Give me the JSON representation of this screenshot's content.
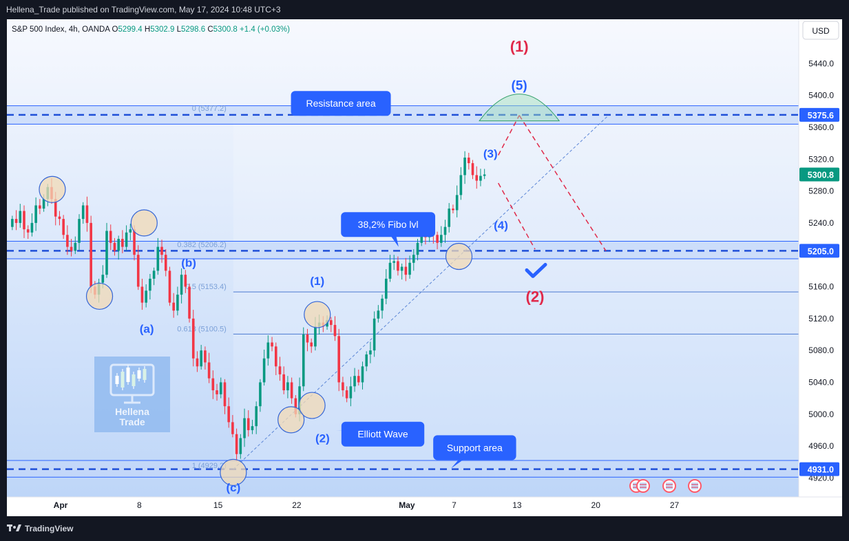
{
  "header": {
    "published_line": "Hellena_Trade published on TradingView.com, May 17, 2024 10:48 UTC+3"
  },
  "legend": {
    "symbol": "S&P 500 Index, 4h, OANDA",
    "o_label": "O",
    "o": "5299.4",
    "h_label": "H",
    "h": "5302.9",
    "l_label": "L",
    "l": "5298.6",
    "c_label": "C",
    "c": "5300.8",
    "change": "+1.4 (+0.03%)"
  },
  "currency_button": "USD",
  "footer": {
    "brand": "TradingView"
  },
  "watermark": {
    "line1": "Hellena",
    "line2": "Trade"
  },
  "colors": {
    "up": "#089981",
    "down": "#f23645",
    "band": "#2962ff",
    "wave_blue": "#2962ff",
    "wave_red": "#e0294a",
    "callout": "#2962ff",
    "fib": "#7ba0d8"
  },
  "chart_data": {
    "type": "candlestick",
    "ylim": [
      4910,
      5480
    ],
    "y_ticks": [
      "5440.0",
      "5400.0",
      "5360.0",
      "5320.0",
      "5280.0",
      "5240.0",
      "5200.0",
      "5160.0",
      "5120.0",
      "5080.0",
      "5040.0",
      "5000.0",
      "4960.0",
      "4920.0"
    ],
    "x_ticks": [
      {
        "label": "Apr",
        "t": 0,
        "bold": true
      },
      {
        "label": "8",
        "t": 30
      },
      {
        "label": "15",
        "t": 60
      },
      {
        "label": "22",
        "t": 90
      },
      {
        "label": "May",
        "t": 132,
        "bold": true
      },
      {
        "label": "7",
        "t": 150
      },
      {
        "label": "13",
        "t": 174
      },
      {
        "label": "20",
        "t": 204
      },
      {
        "label": "27",
        "t": 234
      }
    ],
    "price_labels": [
      {
        "text": "5375.6",
        "y": 5375.6,
        "bg": "#2962ff"
      },
      {
        "text": "5300.8",
        "y": 5300.8,
        "bg": "#089981"
      },
      {
        "text": "5205.0",
        "y": 5205.0,
        "bg": "#2962ff"
      },
      {
        "text": "4931.0",
        "y": 4931.0,
        "bg": "#2962ff"
      }
    ],
    "bands": [
      {
        "name": "resistance",
        "low": 5364,
        "high": 5387,
        "line": 5375.6
      },
      {
        "name": "pivot",
        "low": 5195,
        "high": 5217,
        "line": 5205
      },
      {
        "name": "support",
        "low": 4921,
        "high": 4942,
        "line": 4931
      }
    ],
    "fib_levels": [
      {
        "label": "0 (5377.2)",
        "y": 5377.2
      },
      {
        "label": "0.382 (5206.2)",
        "y": 5206.2
      },
      {
        "label": "0.5 (5153.4)",
        "y": 5153.4
      },
      {
        "label": "0.618 (5100.5)",
        "y": 5100.5
      },
      {
        "label": "1 (4929.2)",
        "y": 4929.2
      }
    ],
    "candles": [
      [
        5235,
        5245
      ],
      [
        5245,
        5240
      ],
      [
        5240,
        5255
      ],
      [
        5255,
        5232
      ],
      [
        5232,
        5228
      ],
      [
        5228,
        5240
      ],
      [
        5240,
        5262
      ],
      [
        5262,
        5258
      ],
      [
        5258,
        5270
      ],
      [
        5270,
        5285
      ],
      [
        5285,
        5270
      ],
      [
        5270,
        5248
      ],
      [
        5248,
        5245
      ],
      [
        5245,
        5225
      ],
      [
        5225,
        5210
      ],
      [
        5210,
        5205
      ],
      [
        5205,
        5215
      ],
      [
        5215,
        5245
      ],
      [
        5245,
        5262
      ],
      [
        5262,
        5240
      ],
      [
        5240,
        5160
      ],
      [
        5160,
        5150
      ],
      [
        5150,
        5165
      ],
      [
        5165,
        5175
      ],
      [
        5175,
        5230
      ],
      [
        5230,
        5215
      ],
      [
        5215,
        5205
      ],
      [
        5205,
        5220
      ],
      [
        5220,
        5210
      ],
      [
        5210,
        5228
      ],
      [
        5228,
        5232
      ],
      [
        5232,
        5200
      ],
      [
        5200,
        5160
      ],
      [
        5160,
        5140
      ],
      [
        5140,
        5155
      ],
      [
        5155,
        5170
      ],
      [
        5170,
        5180
      ],
      [
        5180,
        5210
      ],
      [
        5210,
        5200
      ],
      [
        5200,
        5180
      ],
      [
        5180,
        5140
      ],
      [
        5140,
        5130
      ],
      [
        5130,
        5150
      ],
      [
        5150,
        5175
      ],
      [
        5175,
        5160
      ],
      [
        5160,
        5120
      ],
      [
        5120,
        5070
      ],
      [
        5070,
        5060
      ],
      [
        5060,
        5080
      ],
      [
        5080,
        5065
      ],
      [
        5065,
        5045
      ],
      [
        5045,
        5030
      ],
      [
        5030,
        5025
      ],
      [
        5025,
        5040
      ],
      [
        5040,
        5010
      ],
      [
        5010,
        4990
      ],
      [
        4990,
        4975
      ],
      [
        4975,
        4950
      ],
      [
        4950,
        4970
      ],
      [
        4970,
        4995
      ],
      [
        4995,
        4980
      ],
      [
        4980,
        4985
      ],
      [
        4985,
        5010
      ],
      [
        5010,
        5040
      ],
      [
        5040,
        5070
      ],
      [
        5070,
        5090
      ],
      [
        5090,
        5085
      ],
      [
        5085,
        5060
      ],
      [
        5060,
        5050
      ],
      [
        5050,
        5030
      ],
      [
        5030,
        5040
      ],
      [
        5040,
        5020
      ],
      [
        5020,
        5000
      ],
      [
        5000,
        5035
      ],
      [
        5035,
        5100
      ],
      [
        5100,
        5090
      ],
      [
        5090,
        5085
      ],
      [
        5085,
        5110
      ],
      [
        5110,
        5115
      ],
      [
        5115,
        5110
      ],
      [
        5110,
        5118
      ],
      [
        5118,
        5112
      ],
      [
        5112,
        5098
      ],
      [
        5098,
        5040
      ],
      [
        5040,
        5030
      ],
      [
        5030,
        5020
      ],
      [
        5020,
        5035
      ],
      [
        5035,
        5048
      ],
      [
        5048,
        5040
      ],
      [
        5040,
        5060
      ],
      [
        5060,
        5075
      ],
      [
        5075,
        5080
      ],
      [
        5080,
        5120
      ],
      [
        5120,
        5130
      ],
      [
        5130,
        5145
      ],
      [
        5145,
        5170
      ],
      [
        5170,
        5190
      ],
      [
        5190,
        5192
      ],
      [
        5192,
        5180
      ],
      [
        5180,
        5185
      ],
      [
        5185,
        5175
      ],
      [
        5175,
        5190
      ],
      [
        5190,
        5200
      ],
      [
        5200,
        5215
      ],
      [
        5215,
        5225
      ],
      [
        5225,
        5222
      ],
      [
        5222,
        5232
      ],
      [
        5232,
        5225
      ],
      [
        5225,
        5215
      ],
      [
        5215,
        5225
      ],
      [
        5225,
        5235
      ],
      [
        5235,
        5258
      ],
      [
        5258,
        5256
      ],
      [
        5256,
        5275
      ],
      [
        5275,
        5300
      ],
      [
        5300,
        5322
      ],
      [
        5322,
        5315
      ],
      [
        5315,
        5300
      ],
      [
        5300,
        5293
      ],
      [
        5293,
        5299
      ],
      [
        5299,
        5300.8
      ]
    ],
    "wave_labels": [
      {
        "text": "(1)",
        "t": 194,
        "y": 5455,
        "color": "red",
        "size": 22
      },
      {
        "text": "(5)",
        "t": 194,
        "y": 5407,
        "color": "blue",
        "size": 19
      },
      {
        "text": "(3)",
        "t": 183,
        "y": 5322,
        "color": "blue",
        "size": 17
      },
      {
        "text": "(4)",
        "t": 187,
        "y": 5232,
        "color": "blue",
        "size": 17
      },
      {
        "text": "(2)",
        "t": 200,
        "y": 5141,
        "color": "red",
        "size": 22
      },
      {
        "text": "(b)",
        "t": 68,
        "y": 5185,
        "color": "blue",
        "size": 17
      },
      {
        "text": "(a)",
        "t": 52,
        "y": 5102,
        "color": "blue",
        "size": 17
      },
      {
        "text": "(1)",
        "t": 117,
        "y": 5162,
        "color": "blue",
        "size": 17
      },
      {
        "text": "(2)",
        "t": 119,
        "y": 4965,
        "color": "blue",
        "size": 17
      },
      {
        "text": "(c)",
        "t": 85,
        "y": 4903,
        "color": "blue",
        "size": 17
      }
    ],
    "pivot_circles": [
      {
        "t": 16,
        "y": 5282
      },
      {
        "t": 34,
        "y": 5148
      },
      {
        "t": 51,
        "y": 5240
      },
      {
        "t": 85,
        "y": 4927
      },
      {
        "t": 107,
        "y": 4993
      },
      {
        "t": 117,
        "y": 5125
      },
      {
        "t": 115,
        "y": 5011
      },
      {
        "t": 171,
        "y": 5198
      }
    ],
    "trendline": [
      [
        85,
        4931
      ],
      [
        228,
        5375
      ]
    ],
    "projection": [
      [
        [
          186,
          5325
        ],
        [
          194,
          5375
        ]
      ],
      [
        [
          194,
          5375
        ],
        [
          227,
          5205
        ]
      ],
      [
        [
          186,
          5290
        ],
        [
          200,
          5207
        ]
      ]
    ],
    "callouts": [
      {
        "text": "Resistance area",
        "t": 126,
        "y": 5390,
        "pointer": [
          117,
          5375
        ]
      },
      {
        "text": "38,2% Fibo lvl",
        "t": 144,
        "y": 5238,
        "pointer": [
          148,
          5210
        ]
      },
      {
        "text": "Elliott Wave",
        "t": 142,
        "y": 4975,
        "pointer": [
          124,
          4980
        ]
      },
      {
        "text": "Support area",
        "t": 177,
        "y": 4958,
        "pointer": [
          168,
          4932
        ]
      }
    ]
  }
}
